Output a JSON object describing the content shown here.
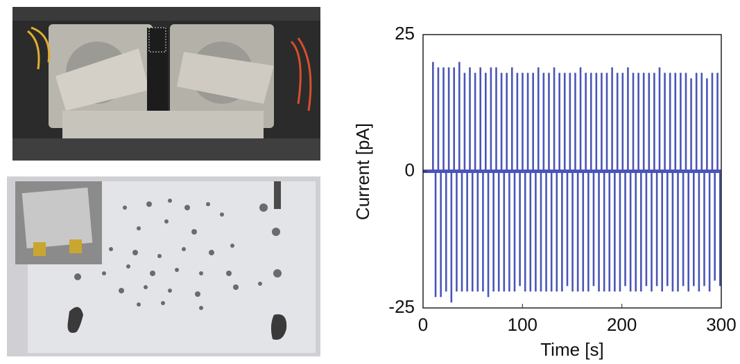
{
  "chart_data": {
    "type": "stem",
    "xlabel": "Time [s]",
    "ylabel": "Current [pA]",
    "color": "#4a55b5",
    "xlim": [
      0,
      300
    ],
    "ylim": [
      -25,
      25
    ],
    "xticks": [
      0,
      100,
      200,
      300
    ],
    "yticks": [
      -25,
      0,
      25
    ],
    "x": [
      10,
      12.6,
      15.3,
      17.9,
      20.6,
      23.2,
      25.9,
      28.5,
      31.2,
      33.8,
      36.5,
      39.1,
      41.8,
      44.4,
      47.1,
      49.7,
      52.4,
      55,
      57.7,
      60.3,
      63,
      65.6,
      68.3,
      70.9,
      73.6,
      76.2,
      78.9,
      81.5,
      84.2,
      86.8,
      89.5,
      92.1,
      94.8,
      97.4,
      100.1,
      102.7,
      105.4,
      108,
      110.7,
      113.3,
      116,
      118.6,
      121.3,
      123.9,
      126.6,
      129.2,
      131.9,
      134.5,
      137.2,
      139.8,
      142.5,
      145.1,
      147.8,
      150.4,
      153.1,
      155.7,
      158.4,
      161,
      163.7,
      166.3,
      169,
      171.6,
      174.3,
      176.9,
      179.6,
      182.2,
      184.9,
      187.5,
      190.2,
      192.8,
      195.5,
      198.1,
      200.8,
      203.4,
      206.1,
      208.7,
      211.4,
      214,
      216.7,
      219.3,
      222,
      224.6,
      227.3,
      229.9,
      232.6,
      235.2,
      237.9,
      240.5,
      243.2,
      245.8,
      248.5,
      251.1,
      253.8,
      256.4,
      259.1,
      261.7,
      264.4,
      267,
      269.7,
      272.3,
      275,
      277.6,
      280.3,
      282.9,
      285.6,
      288.2,
      290.9,
      293.5,
      296.2,
      298.8
    ],
    "values": [
      20,
      -23,
      19,
      -23,
      19,
      -22,
      19,
      -24,
      19,
      -22,
      20,
      -22,
      18,
      -22,
      19,
      -22,
      18,
      -22,
      19,
      -22,
      18,
      -23,
      19,
      -22,
      19,
      -22,
      18,
      -22,
      18,
      -22,
      19,
      -22,
      18,
      -21,
      18,
      -22,
      18,
      -22,
      18,
      -22,
      19,
      -22,
      18,
      -22,
      18,
      -22,
      19,
      -22,
      18,
      -22,
      18,
      -21,
      18,
      -22,
      18,
      -22,
      19,
      -22,
      18,
      -22,
      18,
      -21,
      18,
      -22,
      18,
      -22,
      18,
      -22,
      19,
      -22,
      18,
      -22,
      18,
      -21,
      19,
      -22,
      18,
      -22,
      18,
      -22,
      18,
      -21,
      18,
      -22,
      18,
      -21,
      19,
      -22,
      18,
      -21,
      18,
      -22,
      18,
      -22,
      18,
      -21,
      18,
      -22,
      17,
      -21,
      18,
      -22,
      18,
      -21,
      17,
      -22,
      18,
      -20,
      18,
      -21
    ]
  }
}
